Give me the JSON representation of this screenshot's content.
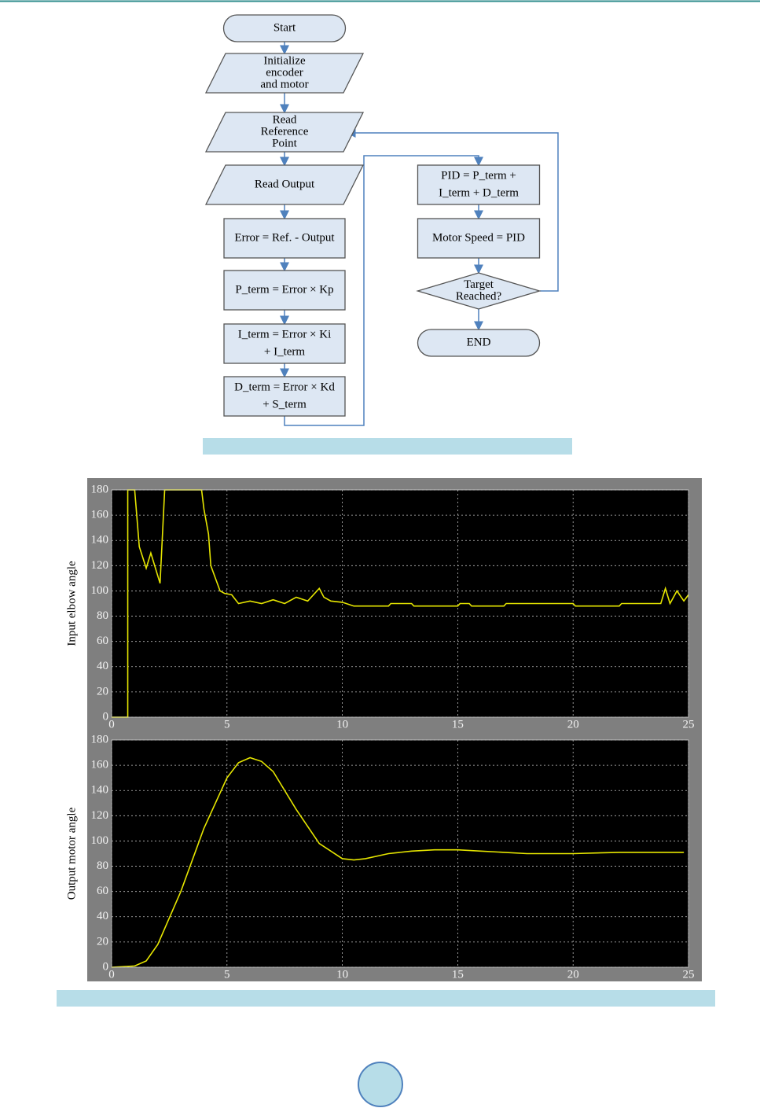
{
  "flowchart": {
    "nodes": [
      {
        "lines": [
          "Start"
        ]
      },
      {
        "lines": [
          "Initialize",
          "encoder",
          "and motor"
        ]
      },
      {
        "lines": [
          "Read",
          "Reference",
          "Point"
        ]
      },
      {
        "lines": [
          "Read Output"
        ]
      },
      {
        "lines": [
          "Error = Ref. - Output"
        ]
      },
      {
        "lines": [
          "P_term = Error × Kp"
        ]
      },
      {
        "lines": [
          "I_term = Error × Ki",
          "+ I_term"
        ]
      },
      {
        "lines": [
          "D_term = Error × Kd",
          "+ S_term"
        ]
      },
      {
        "lines": [
          "PID = P_term +",
          "I_term + D_term"
        ]
      },
      {
        "lines": [
          "Motor Speed = PID"
        ]
      },
      {
        "lines": [
          "Target",
          "Reached?"
        ]
      },
      {
        "lines": [
          "END"
        ]
      }
    ]
  },
  "chart_data": [
    {
      "type": "line",
      "y_label": "Input elbow angle",
      "xlim": [
        0,
        25
      ],
      "xticks": [
        0,
        5,
        10,
        15,
        20,
        25
      ],
      "ylim": [
        0,
        180
      ],
      "yticks": [
        0,
        20,
        40,
        60,
        80,
        100,
        120,
        140,
        160,
        180
      ],
      "grid": true,
      "series": [
        {
          "color": "#e6e600",
          "x": [
            0,
            0.7,
            0.7,
            0.75,
            1.0,
            1.2,
            1.5,
            1.7,
            1.9,
            2.1,
            2.3,
            3.0,
            3.9,
            4.0,
            4.2,
            4.3,
            4.5,
            4.7,
            4.9,
            5.2,
            5.5,
            6,
            6.5,
            7,
            7.5,
            8,
            8.5,
            9,
            9.2,
            9.5,
            10,
            10.5,
            12,
            12.1,
            13,
            13.1,
            15,
            15.1,
            15.5,
            15.6,
            17,
            17.1,
            20,
            20.1,
            22,
            22.1,
            23.8,
            24,
            24.2,
            24.5,
            24.8,
            25
          ],
          "values": [
            0,
            0,
            180,
            180,
            180,
            135,
            118,
            130,
            118,
            106,
            180,
            180,
            180,
            165,
            145,
            120,
            110,
            100,
            98,
            97,
            90,
            92,
            90,
            93,
            90,
            95,
            92,
            102,
            95,
            92,
            91,
            88,
            88,
            90,
            90,
            88,
            88,
            90,
            90,
            88,
            88,
            90,
            90,
            88,
            88,
            90,
            90,
            102,
            90,
            100,
            92,
            97
          ]
        }
      ]
    },
    {
      "type": "line",
      "y_label": "Output motor angle",
      "xlim": [
        0,
        25
      ],
      "xticks": [
        0,
        5,
        10,
        15,
        20,
        25
      ],
      "ylim": [
        0,
        180
      ],
      "yticks": [
        0,
        20,
        40,
        60,
        80,
        100,
        120,
        140,
        160,
        180
      ],
      "grid": true,
      "series": [
        {
          "color": "#e6e600",
          "x": [
            0,
            1,
            1.5,
            2,
            3,
            4,
            5,
            5.5,
            6,
            6.5,
            7,
            8,
            9,
            10,
            10.5,
            11,
            12,
            13,
            14,
            15,
            16,
            18,
            20,
            22,
            24,
            24.8
          ],
          "values": [
            0,
            1,
            5,
            18,
            60,
            110,
            150,
            162,
            166,
            163,
            155,
            125,
            98,
            86,
            85,
            86,
            90,
            92,
            93,
            93,
            92,
            90,
            90,
            91,
            91,
            91
          ]
        }
      ]
    }
  ]
}
